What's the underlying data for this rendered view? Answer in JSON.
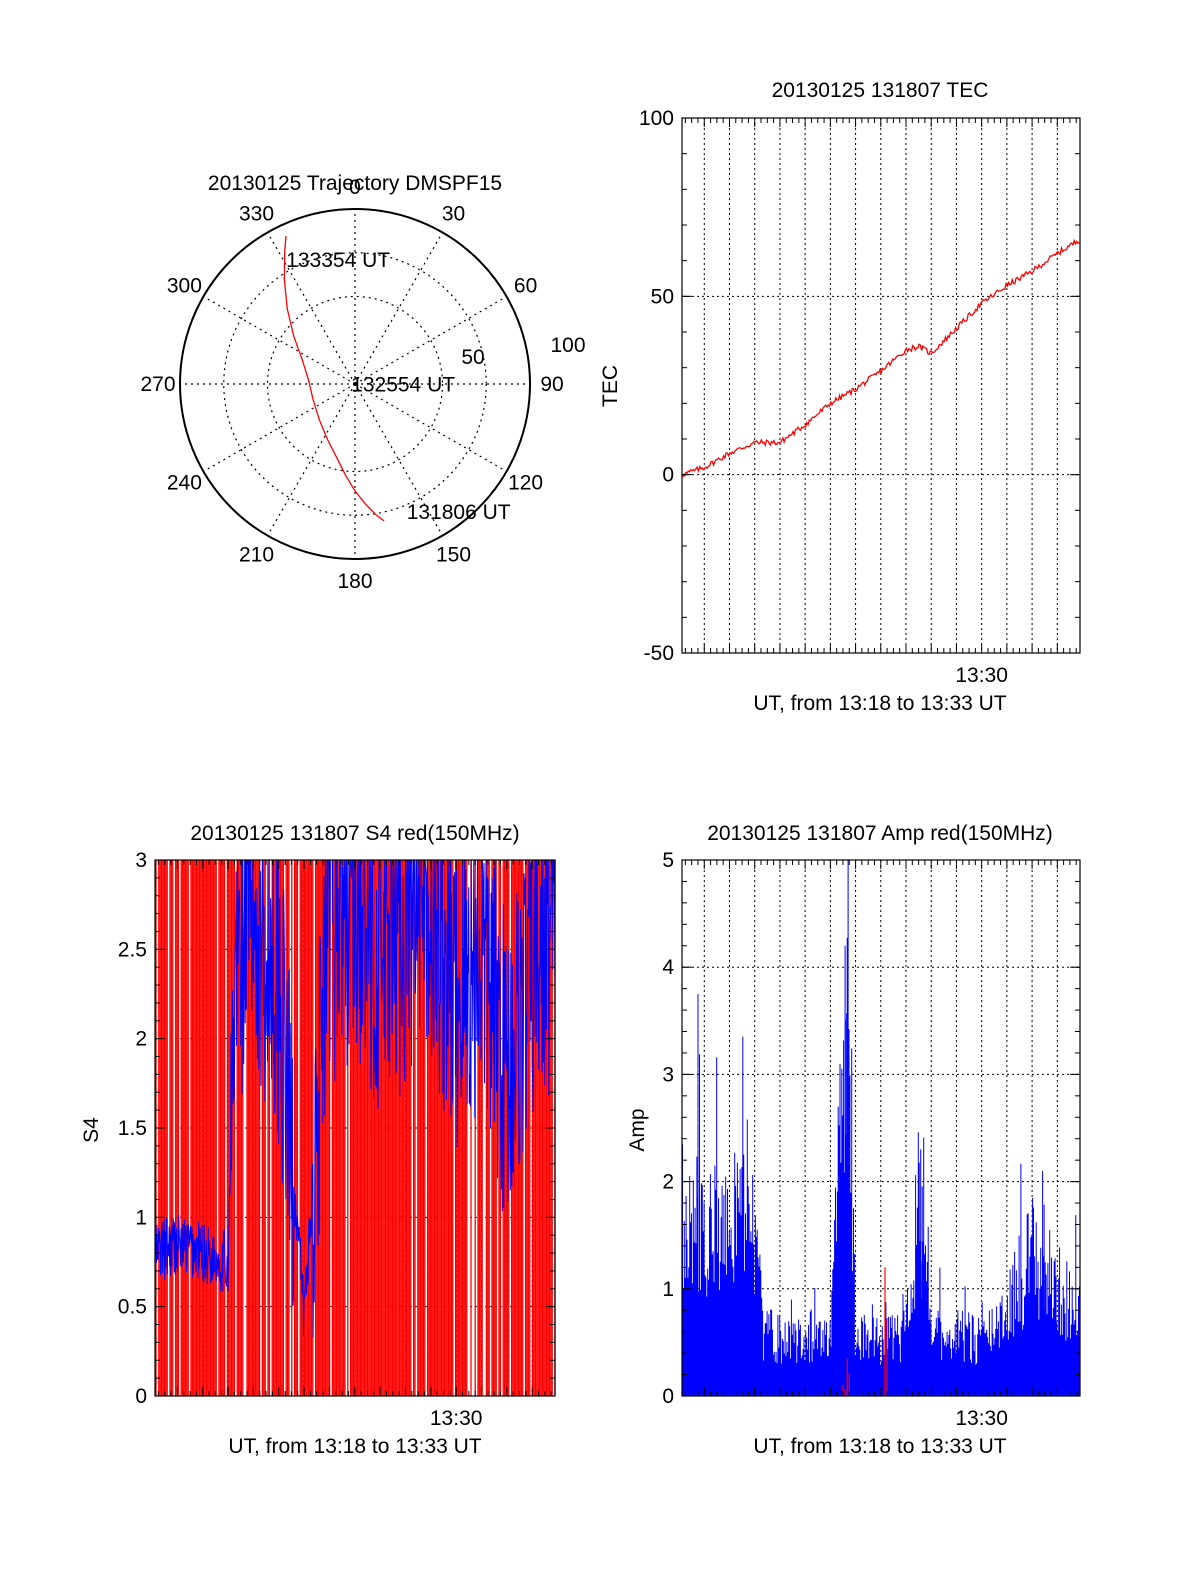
{
  "chart_data": [
    {
      "type": "polar",
      "title": "20130125 Trajectory DMSPF15",
      "angle_labels": [
        "0",
        "30",
        "60",
        "90",
        "120",
        "150",
        "180",
        "210",
        "240",
        "270",
        "300",
        "330"
      ],
      "radial_labels": [
        "50",
        "100"
      ],
      "rlim": [
        0,
        100
      ],
      "grid": true,
      "series": [
        {
          "color": "#ff0000",
          "points": [
            {
              "az": 168,
              "el": 18
            },
            {
              "az": 171,
              "el": 22
            },
            {
              "az": 175,
              "el": 28
            },
            {
              "az": 180,
              "el": 35
            },
            {
              "az": 186,
              "el": 43
            },
            {
              "az": 194,
              "el": 51
            },
            {
              "az": 206,
              "el": 58
            },
            {
              "az": 225,
              "el": 64
            },
            {
              "az": 250,
              "el": 67
            },
            {
              "az": 275,
              "el": 66
            },
            {
              "az": 295,
              "el": 60
            },
            {
              "az": 308,
              "el": 50
            },
            {
              "az": 318,
              "el": 38
            },
            {
              "az": 326,
              "el": 25
            },
            {
              "az": 332,
              "el": 13
            },
            {
              "az": 335,
              "el": 6
            }
          ]
        }
      ],
      "annotations": [
        {
          "text": "133354 UT",
          "az": 331,
          "el": 17
        },
        {
          "text": "132554 UT",
          "az": 260,
          "el": 88
        },
        {
          "text": "131806 UT",
          "az": 158,
          "el": 19
        }
      ]
    },
    {
      "type": "line",
      "title": "20130125 131807 TEC",
      "xlabel": "UT, from 13:18 to 13:33 UT",
      "ylabel": "TEC",
      "xlim": [
        "13:18:07",
        "13:33:54"
      ],
      "ylim": [
        -50,
        100
      ],
      "yticks": [
        "-50",
        "0",
        "50",
        "100"
      ],
      "xtick_labels": [
        {
          "label": "13:30",
          "x": "13:30"
        }
      ],
      "grid": true,
      "series": [
        {
          "color": "#ff0000",
          "x": [
            "13:18:07",
            "13:19:00",
            "13:20:00",
            "13:21:00",
            "13:22:00",
            "13:23:00",
            "13:24:00",
            "13:25:00",
            "13:26:00",
            "13:27:00",
            "13:27:30",
            "13:28:00",
            "13:29:00",
            "13:30:00",
            "13:31:00",
            "13:32:00",
            "13:33:00",
            "13:33:54"
          ],
          "y": [
            0,
            2,
            6,
            9,
            9,
            14,
            20,
            24,
            29,
            35,
            36,
            34,
            41,
            48,
            53,
            57,
            62,
            66
          ]
        }
      ]
    },
    {
      "type": "line",
      "title": "20130125 131807 S4 red(150MHz)",
      "xlabel": "UT, from 13:18 to 13:33 UT",
      "ylabel": "S4",
      "xlim": [
        "13:18:07",
        "13:33:54"
      ],
      "ylim": [
        0,
        3
      ],
      "yticks": [
        "0",
        "0.5",
        "1",
        "1.5",
        "2",
        "2.5",
        "3"
      ],
      "xtick_labels": [
        {
          "label": "13:30",
          "x": "13:30"
        }
      ],
      "grid": true,
      "series": [
        {
          "color": "#ff0000",
          "style": "dense oscillation between 0 and 3",
          "range": [
            0,
            3
          ]
        },
        {
          "color": "#0000ff",
          "x": [
            "13:18:07",
            "13:19:00",
            "13:20:00",
            "13:21:00",
            "13:21:20",
            "13:22:00",
            "13:23:00",
            "13:24:00",
            "13:25:00",
            "13:26:00",
            "13:27:00",
            "13:28:00",
            "13:29:00",
            "13:30:00",
            "13:31:00",
            "13:32:00",
            "13:33:00",
            "13:33:54"
          ],
          "y": [
            0.8,
            0.85,
            0.8,
            0.75,
            2.5,
            2.7,
            2.3,
            0.45,
            2.6,
            2.8,
            2.4,
            2.6,
            2.7,
            2.2,
            2.5,
            1.8,
            2.4,
            2.6
          ]
        }
      ]
    },
    {
      "type": "line",
      "title": "20130125 131807 Amp red(150MHz)",
      "xlabel": "UT, from 13:18 to 13:33 UT",
      "ylabel": "Amp",
      "xlim": [
        "13:18:07",
        "13:33:54"
      ],
      "ylim": [
        0,
        5
      ],
      "yticks": [
        "0",
        "1",
        "2",
        "3",
        "4",
        "5"
      ],
      "xtick_labels": [
        {
          "label": "13:30",
          "x": "13:30"
        }
      ],
      "grid": true,
      "series": [
        {
          "color": "#0000ff",
          "x": [
            "13:18:07",
            "13:19:00",
            "13:20:00",
            "13:21:00",
            "13:21:20",
            "13:22:00",
            "13:23:00",
            "13:24:00",
            "13:24:40",
            "13:25:00",
            "13:26:00",
            "13:27:00",
            "13:27:30",
            "13:28:00",
            "13:29:00",
            "13:30:00",
            "13:31:00",
            "13:32:00",
            "13:33:00",
            "13:33:54"
          ],
          "y": [
            2.0,
            1.9,
            2.0,
            1.8,
            0.7,
            0.65,
            0.7,
            0.6,
            4.2,
            0.65,
            0.6,
            0.7,
            2.3,
            0.65,
            0.7,
            0.6,
            1.0,
            1.6,
            1.2,
            0.9
          ],
          "spikes": [
            {
              "x": "13:18:45",
              "y": 3.75
            },
            {
              "x": "13:24:35",
              "y": 4.2
            },
            {
              "x": "13:27:35",
              "y": 2.3
            },
            {
              "x": "13:32:25",
              "y": 2.1
            }
          ]
        },
        {
          "color": "#ff0000",
          "x": [
            "13:24:30",
            "13:24:40",
            "13:26:10"
          ],
          "y": [
            0.1,
            0.35,
            1.2
          ]
        }
      ]
    }
  ]
}
